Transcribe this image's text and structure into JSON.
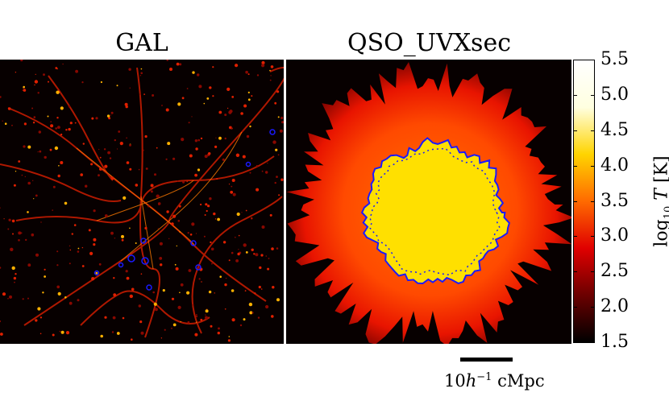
{
  "panels": {
    "left_title": "GAL",
    "right_title": "QSO_UVXsec"
  },
  "colorbar": {
    "label": "log10 T [K]",
    "ticks": [
      "5.5",
      "5.0",
      "4.5",
      "4.0",
      "3.5",
      "3.0",
      "2.5",
      "2.0",
      "1.5"
    ],
    "range": [
      1.5,
      5.5
    ],
    "colors": [
      "#000000",
      "#6b0000",
      "#e00000",
      "#ff6a00",
      "#ffd400",
      "#ffffe0",
      "#ffffff"
    ]
  },
  "scale_bar": {
    "label": "10h-1 cMpc"
  }
}
